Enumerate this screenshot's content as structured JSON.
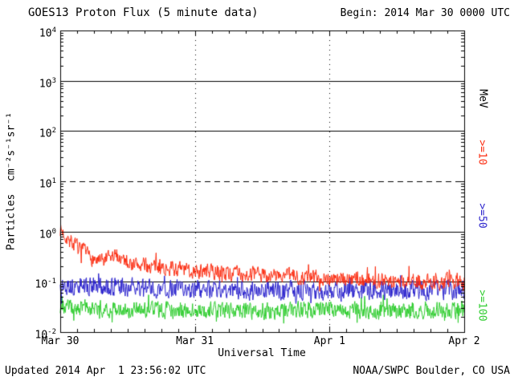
{
  "chart_data": {
    "type": "line",
    "title": "GOES13 Proton Flux (5 minute data)",
    "begin_label": "Begin: 2014 Mar 30 0000 UTC",
    "updated_label": "Updated 2014 Apr  1 23:56:02 UTC",
    "source_label": "NOAA/SWPC Boulder, CO USA",
    "xlabel": "Universal Time",
    "ylabel": "Particles  cm⁻²s⁻¹sr⁻¹",
    "right_axis_label": "MeV",
    "cadence_minutes": 5,
    "x_scale": "time",
    "x_span_days": 3,
    "x_ticks": [
      {
        "label": "Mar 30",
        "day": 0
      },
      {
        "label": "Mar 31",
        "day": 1
      },
      {
        "label": "Apr 1",
        "day": 2
      },
      {
        "label": "Apr 2",
        "day": 3
      }
    ],
    "y_scale": "log10",
    "y_range": [
      0.01,
      10000
    ],
    "y_tick_exponents": [
      4,
      3,
      2,
      1,
      0,
      -1,
      -2
    ],
    "grid": {
      "solid_decades": [
        3,
        2,
        0,
        -1
      ],
      "dashed_decades": [
        1
      ],
      "vertical_dotted_days": [
        1,
        2
      ]
    },
    "series": [
      {
        "name": ">=10",
        "label": ">=10",
        "unit": "MeV",
        "color": "#fb2c10",
        "points_per_day": 288,
        "noise_sigma_log10": 0.14,
        "seed": 7,
        "trend_log10": [
          [
            0,
            0.05
          ],
          [
            0.05,
            -0.12
          ],
          [
            0.12,
            -0.3
          ],
          [
            0.22,
            -0.5
          ],
          [
            0.3,
            -0.62
          ],
          [
            0.42,
            -0.48
          ],
          [
            0.55,
            -0.65
          ],
          [
            0.75,
            -0.72
          ],
          [
            1.0,
            -0.78
          ],
          [
            1.4,
            -0.85
          ],
          [
            1.8,
            -0.9
          ],
          [
            2.2,
            -0.95
          ],
          [
            2.6,
            -1.0
          ],
          [
            3.0,
            -1.0
          ]
        ]
      },
      {
        "name": ">=50",
        "label": ">=50",
        "unit": "MeV",
        "color": "#2a22cc",
        "points_per_day": 288,
        "noise_sigma_log10": 0.17,
        "seed": 13,
        "trend_log10": [
          [
            0,
            -1.08
          ],
          [
            0.5,
            -1.12
          ],
          [
            1.0,
            -1.15
          ],
          [
            2.0,
            -1.18
          ],
          [
            3.0,
            -1.15
          ]
        ]
      },
      {
        "name": ">=100",
        "label": ">=100",
        "unit": "MeV",
        "color": "#2ecc2e",
        "points_per_day": 288,
        "noise_sigma_log10": 0.15,
        "seed": 23,
        "trend_log10": [
          [
            0,
            -1.5
          ],
          [
            0.5,
            -1.55
          ],
          [
            1.5,
            -1.58
          ],
          [
            3.0,
            -1.55
          ]
        ]
      }
    ]
  }
}
